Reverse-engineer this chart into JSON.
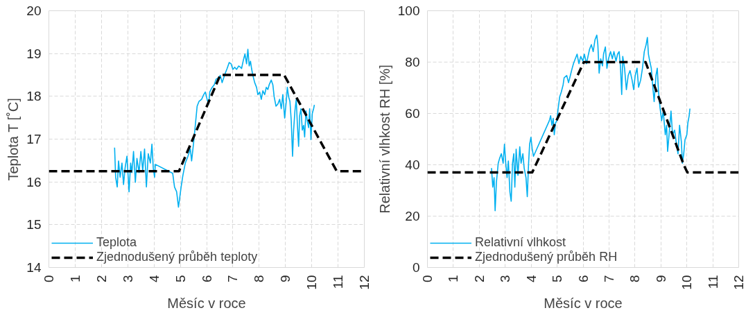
{
  "chart_data": [
    {
      "type": "line",
      "xlabel": "Měsíc v roce",
      "ylabel": "Teplota T [˚C]",
      "xlim": [
        0,
        12
      ],
      "xticks": [
        0,
        1,
        2,
        3,
        4,
        5,
        6,
        7,
        8,
        9,
        10,
        11,
        12
      ],
      "ylim": [
        14,
        20
      ],
      "yticks": [
        14,
        15,
        16,
        17,
        18,
        19,
        20
      ],
      "grid": true,
      "legend": "bottom left",
      "series": [
        {
          "name": "Teplota",
          "color": "#00b0f0",
          "line_style": "solid",
          "x": [
            2.5,
            2.54,
            2.6,
            2.65,
            2.71,
            2.78,
            2.84,
            2.9,
            2.97,
            3.05,
            3.11,
            3.16,
            3.22,
            3.29,
            3.35,
            3.43,
            3.5,
            3.57,
            3.64,
            3.71,
            3.78,
            3.86,
            3.92,
            3.97,
            4.02,
            4.05,
            4.71,
            4.78,
            4.86,
            4.93,
            5.03,
            5.1,
            5.19,
            5.29,
            5.38,
            5.43,
            5.5,
            5.57,
            5.64,
            5.71,
            5.81,
            5.89,
            5.95,
            6.02,
            6.08,
            6.12,
            6.21,
            6.29,
            6.36,
            6.45,
            6.52,
            6.59,
            6.65,
            6.71,
            6.78,
            6.86,
            6.93,
            7.0,
            7.07,
            7.14,
            7.22,
            7.29,
            7.33,
            7.4,
            7.46,
            7.52,
            7.57,
            7.62,
            7.67,
            7.71,
            7.76,
            7.83,
            7.9,
            7.95,
            8.02,
            8.08,
            8.14,
            8.21,
            8.27,
            8.33,
            8.38,
            8.46,
            8.52,
            8.57,
            8.64,
            8.71,
            8.78,
            8.84,
            8.9,
            8.97,
            9.03,
            9.07,
            9.12,
            9.17,
            9.22,
            9.27,
            9.31,
            9.36,
            9.41,
            9.45,
            9.5,
            9.54,
            9.59,
            9.64,
            9.69,
            9.73,
            9.78,
            9.83,
            9.88,
            9.92,
            9.97,
            10.02,
            10.07,
            10.1
          ],
          "values": [
            16.8,
            16.11,
            15.88,
            16.49,
            16.11,
            16.44,
            15.94,
            16.33,
            16.6,
            15.77,
            16.44,
            16.22,
            16.71,
            15.99,
            16.55,
            16.22,
            16.71,
            16.27,
            16.77,
            15.88,
            16.66,
            16.44,
            16.88,
            16.33,
            16.11,
            16.41,
            16.2,
            15.88,
            15.77,
            15.41,
            15.88,
            16.16,
            16.44,
            16.6,
            16.77,
            16.49,
            16.88,
            17.32,
            17.77,
            17.88,
            17.93,
            18.04,
            18.1,
            17.93,
            17.82,
            18.1,
            18.21,
            18.27,
            18.4,
            18.43,
            18.49,
            18.32,
            18.43,
            18.54,
            18.65,
            18.79,
            18.76,
            18.63,
            18.68,
            18.63,
            18.71,
            18.68,
            18.65,
            18.85,
            18.99,
            18.76,
            19.1,
            18.71,
            18.82,
            18.65,
            18.49,
            18.32,
            18.21,
            18.04,
            18.1,
            17.93,
            18.13,
            18.04,
            18.21,
            18.16,
            18.27,
            18.38,
            18.27,
            17.99,
            17.77,
            17.82,
            17.93,
            17.71,
            18.04,
            17.49,
            17.88,
            18.21,
            17.99,
            17.88,
            17.43,
            16.6,
            17.21,
            17.66,
            17.93,
            17.38,
            16.83,
            17.55,
            17.71,
            17.21,
            17.32,
            17.05,
            17.66,
            17.43,
            17.27,
            17.71,
            16.99,
            17.6,
            17.71,
            17.8
          ]
        },
        {
          "name": "Zjednodušený průběh teploty",
          "color": "#000000",
          "line_style": "dashed",
          "x": [
            0,
            4.95,
            6.52,
            8.95,
            10.95,
            12
          ],
          "values": [
            16.25,
            16.25,
            18.5,
            18.5,
            16.25,
            16.25
          ]
        }
      ]
    },
    {
      "type": "line",
      "xlabel": "Měsíc v roce",
      "ylabel": "Relativní vlhkost RH [%]",
      "xlim": [
        0,
        12
      ],
      "xticks": [
        0,
        1,
        2,
        3,
        4,
        5,
        6,
        7,
        8,
        9,
        10,
        11,
        12
      ],
      "ylim": [
        0,
        100
      ],
      "yticks": [
        0,
        20,
        40,
        60,
        80,
        100
      ],
      "grid": true,
      "legend": "bottom left",
      "series": [
        {
          "name": "Relativní vlhkost",
          "color": "#00b0f0",
          "line_style": "solid",
          "x": [
            2.47,
            2.52,
            2.57,
            2.61,
            2.66,
            2.73,
            2.78,
            2.85,
            2.92,
            2.97,
            3.02,
            3.07,
            3.12,
            3.18,
            3.23,
            3.28,
            3.33,
            3.37,
            3.42,
            3.49,
            3.56,
            3.61,
            3.68,
            3.73,
            3.8,
            3.85,
            3.9,
            3.94,
            3.99,
            4.04,
            4.09,
            4.7,
            4.75,
            4.8,
            4.85,
            4.89,
            4.94,
            4.99,
            5.04,
            5.1,
            5.16,
            5.23,
            5.27,
            5.37,
            5.44,
            5.51,
            5.58,
            5.63,
            5.7,
            5.77,
            5.84,
            5.91,
            5.99,
            6.05,
            6.13,
            6.19,
            6.25,
            6.32,
            6.39,
            6.46,
            6.53,
            6.57,
            6.62,
            6.68,
            6.75,
            6.79,
            6.86,
            6.92,
            6.98,
            7.06,
            7.13,
            7.19,
            7.27,
            7.33,
            7.39,
            7.44,
            7.49,
            7.53,
            7.6,
            7.67,
            7.74,
            7.81,
            7.89,
            7.95,
            8.01,
            8.08,
            8.14,
            8.22,
            8.29,
            8.36,
            8.43,
            8.48,
            8.52,
            8.57,
            8.63,
            8.69,
            8.74,
            8.81,
            8.86,
            8.91,
            8.96,
            9.03,
            9.09,
            9.17,
            9.22,
            9.26,
            9.33,
            9.39,
            9.45,
            9.53,
            9.6,
            9.66,
            9.72,
            9.79,
            9.83,
            9.88,
            9.93,
            10.0,
            10.04,
            10.09,
            10.12
          ],
          "values": [
            38.7,
            31.3,
            35.0,
            22.1,
            33.2,
            40.6,
            42.4,
            44.3,
            40.6,
            48.0,
            40.6,
            35.0,
            41.5,
            29.4,
            25.8,
            40.6,
            44.3,
            31.3,
            46.1,
            35.9,
            47.0,
            40.6,
            44.3,
            38.7,
            35.0,
            27.6,
            40.6,
            48.0,
            50.7,
            46.1,
            43.3,
            57.2,
            59.1,
            55.4,
            58.1,
            51.7,
            56.3,
            57.2,
            61.9,
            66.5,
            68.3,
            71.1,
            73.9,
            74.8,
            72.0,
            74.8,
            77.6,
            79.4,
            81.3,
            83.1,
            79.4,
            82.2,
            80.4,
            83.1,
            79.4,
            82.2,
            85.0,
            86.8,
            84.1,
            88.7,
            90.5,
            86.8,
            75.7,
            81.3,
            78.5,
            83.1,
            85.9,
            77.6,
            81.3,
            84.1,
            81.3,
            84.1,
            80.4,
            83.1,
            84.1,
            78.5,
            67.4,
            82.2,
            77.6,
            69.3,
            74.8,
            76.7,
            73.0,
            69.3,
            74.8,
            77.6,
            70.2,
            73.0,
            77.6,
            84.1,
            86.8,
            89.6,
            83.1,
            80.4,
            77.6,
            70.2,
            64.6,
            74.8,
            77.6,
            68.3,
            62.8,
            57.2,
            60.9,
            51.7,
            55.4,
            45.2,
            53.5,
            60.9,
            51.7,
            53.5,
            48.0,
            44.3,
            55.4,
            48.9,
            40.6,
            44.3,
            49.8,
            51.7,
            56.3,
            59.1,
            61.9
          ]
        },
        {
          "name": "Zjednodušený průběh RH",
          "color": "#000000",
          "line_style": "dashed",
          "x": [
            0,
            4.04,
            6.03,
            8.41,
            9.88,
            10.02,
            12
          ],
          "values": [
            37,
            37,
            80,
            80,
            40,
            37,
            37
          ]
        }
      ]
    }
  ]
}
